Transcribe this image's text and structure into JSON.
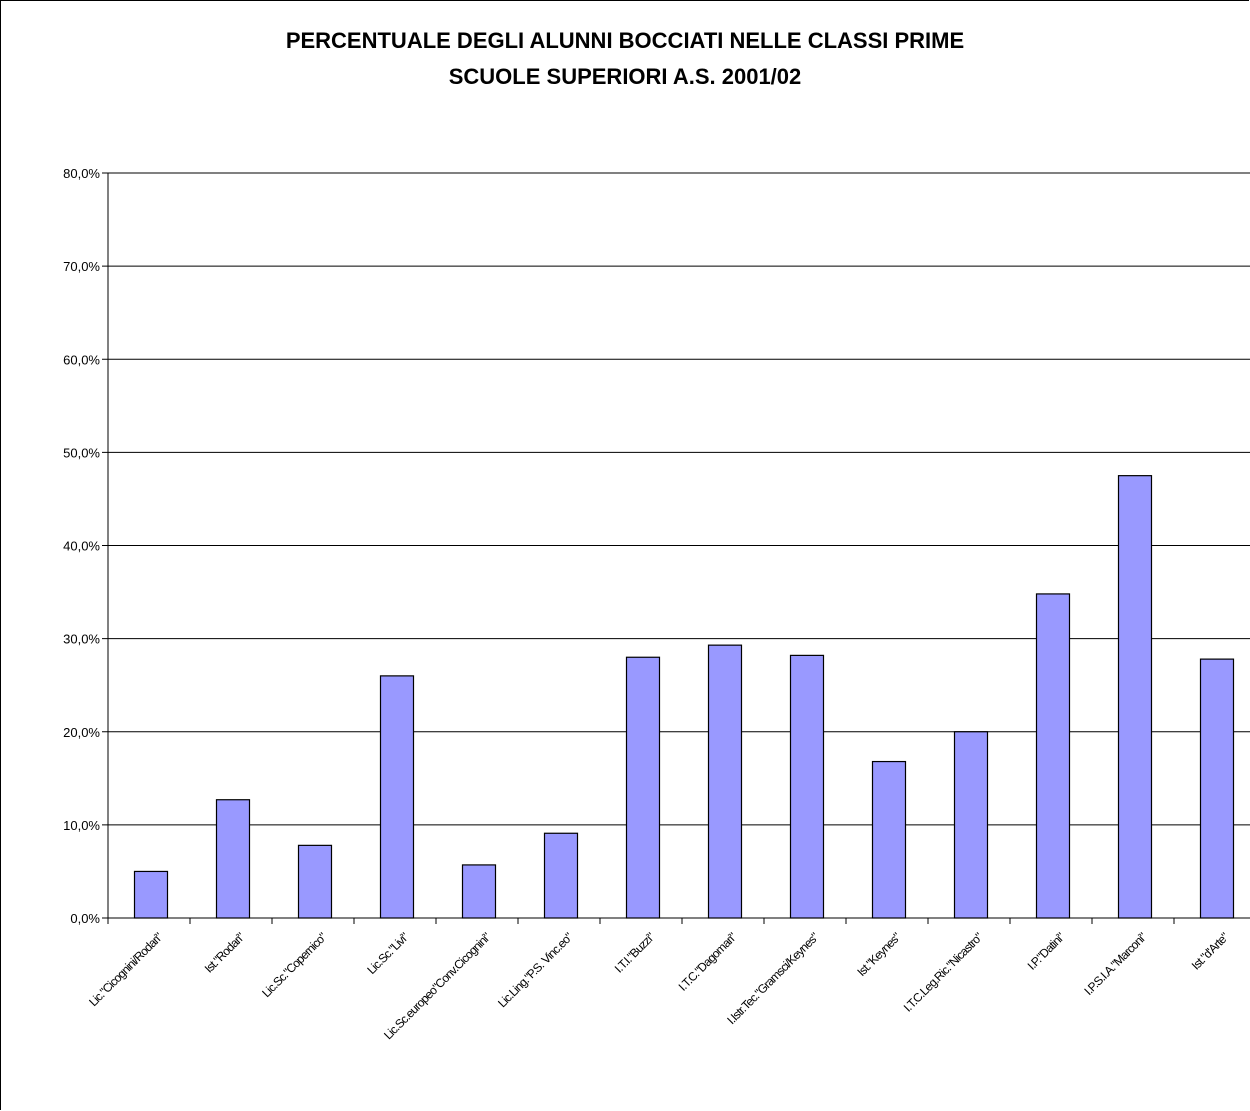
{
  "chart_data": {
    "type": "bar",
    "title_line1": "PERCENTUALE DEGLI ALUNNI BOCCIATI NELLE CLASSI PRIME",
    "title_line2": "SCUOLE SUPERIORI A.S. 2001/02",
    "categories": [
      "Lic.\"Cicognini/Rodari\"",
      "Ist.\"Rodari\"",
      "Lic.Sc.\"Copernico\"",
      "Lic.Sc.\"Livi\"",
      "Lic.Sc.europeo\"Conv.Cicognini\"",
      "Lic.Ling.\"P.S. Vinc.eo\"",
      "I.T.I.\"Buzzi\"",
      "I.T.C.\"Dagomari\"",
      "I.Istr.Tec.\"Gramsci/Keynes\"",
      "Ist.\"Keynes\"",
      "I.T.C.Leg.Ric.\"Nicastro\"",
      "I.P.\"Datini\"",
      "I.P.S.I.A.\"Marconi\"",
      "Ist.\"d'Arte\""
    ],
    "values": [
      5.0,
      12.7,
      7.8,
      26.0,
      5.7,
      9.1,
      28.0,
      29.3,
      28.2,
      16.8,
      20.0,
      34.8,
      47.5,
      27.8
    ],
    "ylim": [
      0,
      80
    ],
    "yticks": [
      "0,0%",
      "10,0%",
      "20,0%",
      "30,0%",
      "40,0%",
      "50,0%",
      "60,0%",
      "70,0%",
      "80,0%"
    ],
    "grid": true,
    "xlabel": "",
    "ylabel": "",
    "colors": {
      "bar_fill": "#9999ff",
      "bar_stroke": "#000000",
      "grid": "#000000"
    }
  }
}
